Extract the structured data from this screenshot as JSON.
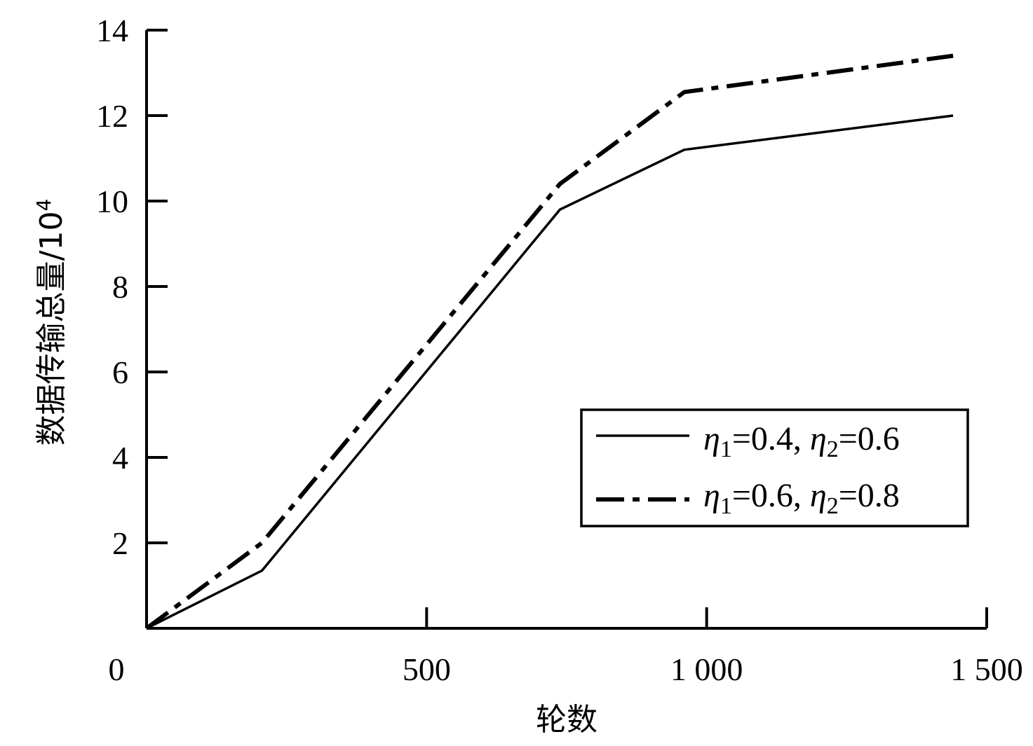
{
  "chart_data": {
    "type": "line",
    "xlabel": "轮数",
    "ylabel": "数据传输总量/10",
    "ylabel_exponent": "4",
    "xlim": [
      0,
      1500
    ],
    "ylim": [
      0,
      14
    ],
    "xticks": [
      0,
      500,
      1000,
      1500
    ],
    "xtick_labels": [
      "0",
      "500",
      "1 000",
      "1 500"
    ],
    "yticks": [
      2,
      4,
      6,
      8,
      10,
      12,
      14
    ],
    "ytick_labels": [
      "2",
      "4",
      "6",
      "8",
      "10",
      "12",
      "14"
    ],
    "grid": false,
    "legend_position": "lower-right",
    "series": [
      {
        "name": "η1=0.4, η2=0.6",
        "legend_parts": {
          "eta": "η",
          "sub1": "1",
          "v1": "=0.4, ",
          "sub2": "2",
          "v2": "=0.6"
        },
        "style": "solid",
        "x": [
          0,
          206,
          738,
          960,
          1440
        ],
        "y": [
          0,
          1.35,
          9.8,
          11.2,
          12.0
        ]
      },
      {
        "name": "η1=0.6, η2=0.8",
        "legend_parts": {
          "eta": "η",
          "sub1": "1",
          "v1": "=0.6, ",
          "sub2": "2",
          "v2": "=0.8"
        },
        "style": "dash-dot",
        "x": [
          0,
          206,
          738,
          960,
          1440
        ],
        "y": [
          0,
          2.0,
          10.4,
          12.55,
          13.4
        ]
      }
    ]
  }
}
